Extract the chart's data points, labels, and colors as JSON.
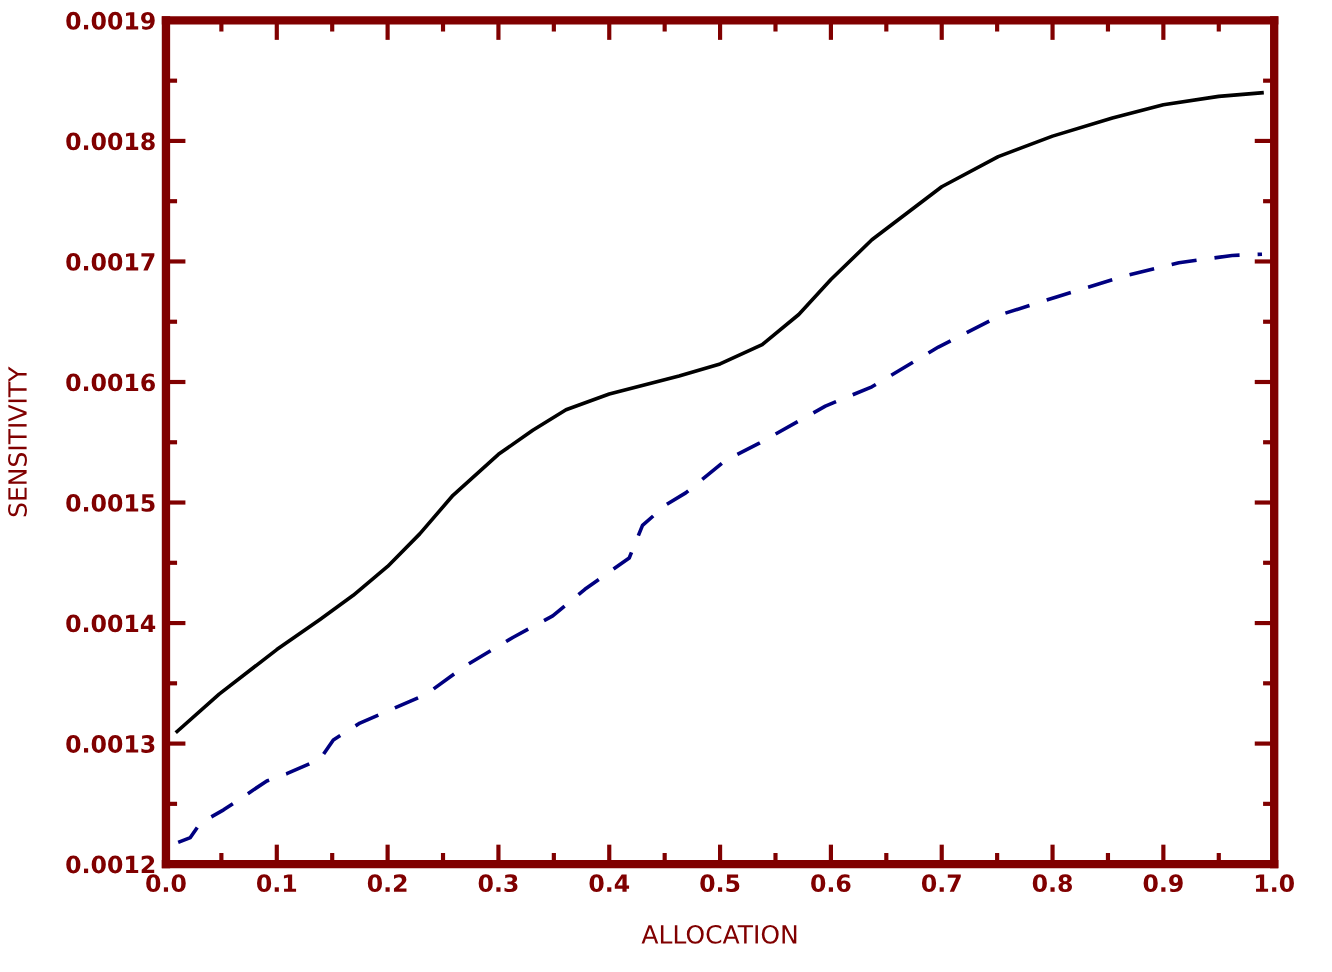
{
  "chart_data": {
    "type": "line",
    "xlabel": "ALLOCATION",
    "ylabel": "SENSITIVITY",
    "xlim": [
      0.0,
      1.0
    ],
    "ylim": [
      0.0012,
      0.0019
    ],
    "xticks": [
      {
        "value": 0,
        "label": "0.0"
      },
      0.1,
      0.2,
      0.3,
      0.4,
      0.5,
      0.6,
      0.7,
      0.8,
      0.9,
      {
        "value": 1,
        "label": "1.0"
      }
    ],
    "yticks": [
      0.0012,
      0.0013,
      0.0014,
      0.0015,
      0.0016,
      0.0017,
      0.0018,
      0.0019
    ],
    "grid": false,
    "series": [
      {
        "color": "#000000",
        "line_style": "solid",
        "x": [
          0.01,
          0.048,
          0.1,
          0.139,
          0.169,
          0.2,
          0.229,
          0.259,
          0.3,
          0.331,
          0.361,
          0.4,
          0.463,
          0.5,
          0.538,
          0.571,
          0.6,
          0.637,
          0.7,
          0.751,
          0.8,
          0.854,
          0.9,
          0.95,
          0.989
        ],
        "values": [
          0.00131,
          0.001341,
          0.001378,
          0.001403,
          0.001423,
          0.001447,
          0.001474,
          0.001506,
          0.00154,
          0.00156,
          0.001577,
          0.00159,
          0.001605,
          0.001615,
          0.001631,
          0.001656,
          0.001685,
          0.001718,
          0.001762,
          0.001787,
          0.001804,
          0.001819,
          0.00183,
          0.001837,
          0.00184
        ]
      },
      {
        "color": "#000080",
        "line_style": "dashed",
        "x": [
          0.011,
          0.022,
          0.031,
          0.052,
          0.091,
          0.109,
          0.139,
          0.151,
          0.175,
          0.235,
          0.271,
          0.313,
          0.349,
          0.378,
          0.418,
          0.43,
          0.451,
          0.469,
          0.505,
          0.535,
          0.595,
          0.637,
          0.697,
          0.757,
          0.805,
          0.865,
          0.914,
          0.962,
          0.989
        ],
        "values": [
          0.001218,
          0.001222,
          0.001234,
          0.001245,
          0.001269,
          0.001275,
          0.001287,
          0.001303,
          0.001317,
          0.001341,
          0.001365,
          0.001388,
          0.001406,
          0.001428,
          0.001454,
          0.001481,
          0.001498,
          0.001508,
          0.001535,
          0.001549,
          0.00158,
          0.001596,
          0.001629,
          0.001657,
          0.001671,
          0.001688,
          0.001699,
          0.001705,
          0.001706
        ]
      }
    ]
  }
}
